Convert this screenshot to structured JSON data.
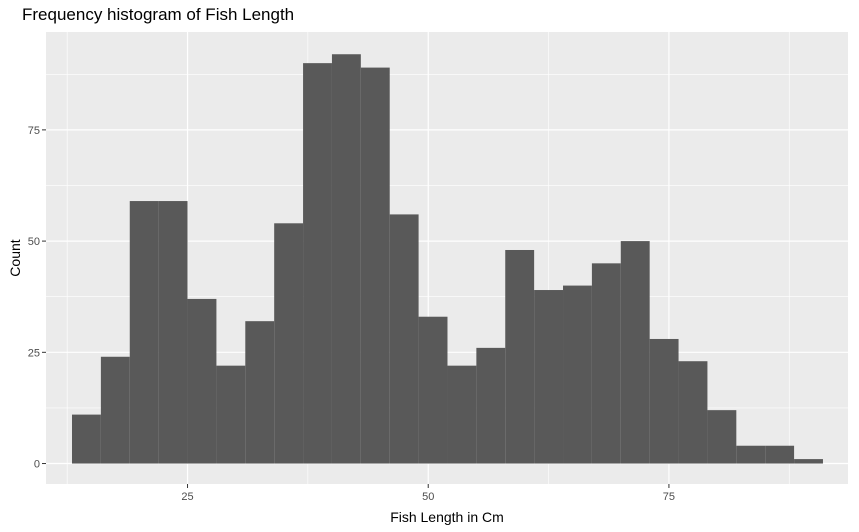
{
  "chart_data": {
    "type": "bar",
    "title": "Frequency histogram of Fish Length",
    "xlabel": "Fish Length in Cm",
    "ylabel": "Count",
    "xlim": [
      10.3,
      93.6
    ],
    "ylim": [
      -4.6,
      97
    ],
    "x_ticks": [
      25,
      50,
      75
    ],
    "y_ticks": [
      0,
      25,
      50,
      75
    ],
    "bin_width": 3,
    "bins": [
      {
        "x0": 13,
        "x1": 16,
        "count": 11
      },
      {
        "x0": 16,
        "x1": 19,
        "count": 24
      },
      {
        "x0": 19,
        "x1": 22,
        "count": 59
      },
      {
        "x0": 22,
        "x1": 25,
        "count": 59
      },
      {
        "x0": 25,
        "x1": 28,
        "count": 37
      },
      {
        "x0": 28,
        "x1": 31,
        "count": 22
      },
      {
        "x0": 31,
        "x1": 34,
        "count": 32
      },
      {
        "x0": 34,
        "x1": 37,
        "count": 54
      },
      {
        "x0": 37,
        "x1": 40,
        "count": 90
      },
      {
        "x0": 40,
        "x1": 43,
        "count": 92
      },
      {
        "x0": 43,
        "x1": 46,
        "count": 89
      },
      {
        "x0": 46,
        "x1": 49,
        "count": 56
      },
      {
        "x0": 49,
        "x1": 52,
        "count": 33
      },
      {
        "x0": 52,
        "x1": 55,
        "count": 22
      },
      {
        "x0": 55,
        "x1": 58,
        "count": 26
      },
      {
        "x0": 58,
        "x1": 61,
        "count": 48
      },
      {
        "x0": 61,
        "x1": 64,
        "count": 39
      },
      {
        "x0": 64,
        "x1": 67,
        "count": 40
      },
      {
        "x0": 67,
        "x1": 70,
        "count": 45
      },
      {
        "x0": 70,
        "x1": 73,
        "count": 50
      },
      {
        "x0": 73,
        "x1": 76,
        "count": 28
      },
      {
        "x0": 76,
        "x1": 79,
        "count": 23
      },
      {
        "x0": 79,
        "x1": 82,
        "count": 12
      },
      {
        "x0": 82,
        "x1": 85,
        "count": 4
      },
      {
        "x0": 85,
        "x1": 88,
        "count": 4
      },
      {
        "x0": 88,
        "x1": 91,
        "count": 1
      }
    ],
    "grid": true,
    "panel_color": "#ebebeb",
    "bar_color": "#595959",
    "grid_color": "#ffffff"
  }
}
